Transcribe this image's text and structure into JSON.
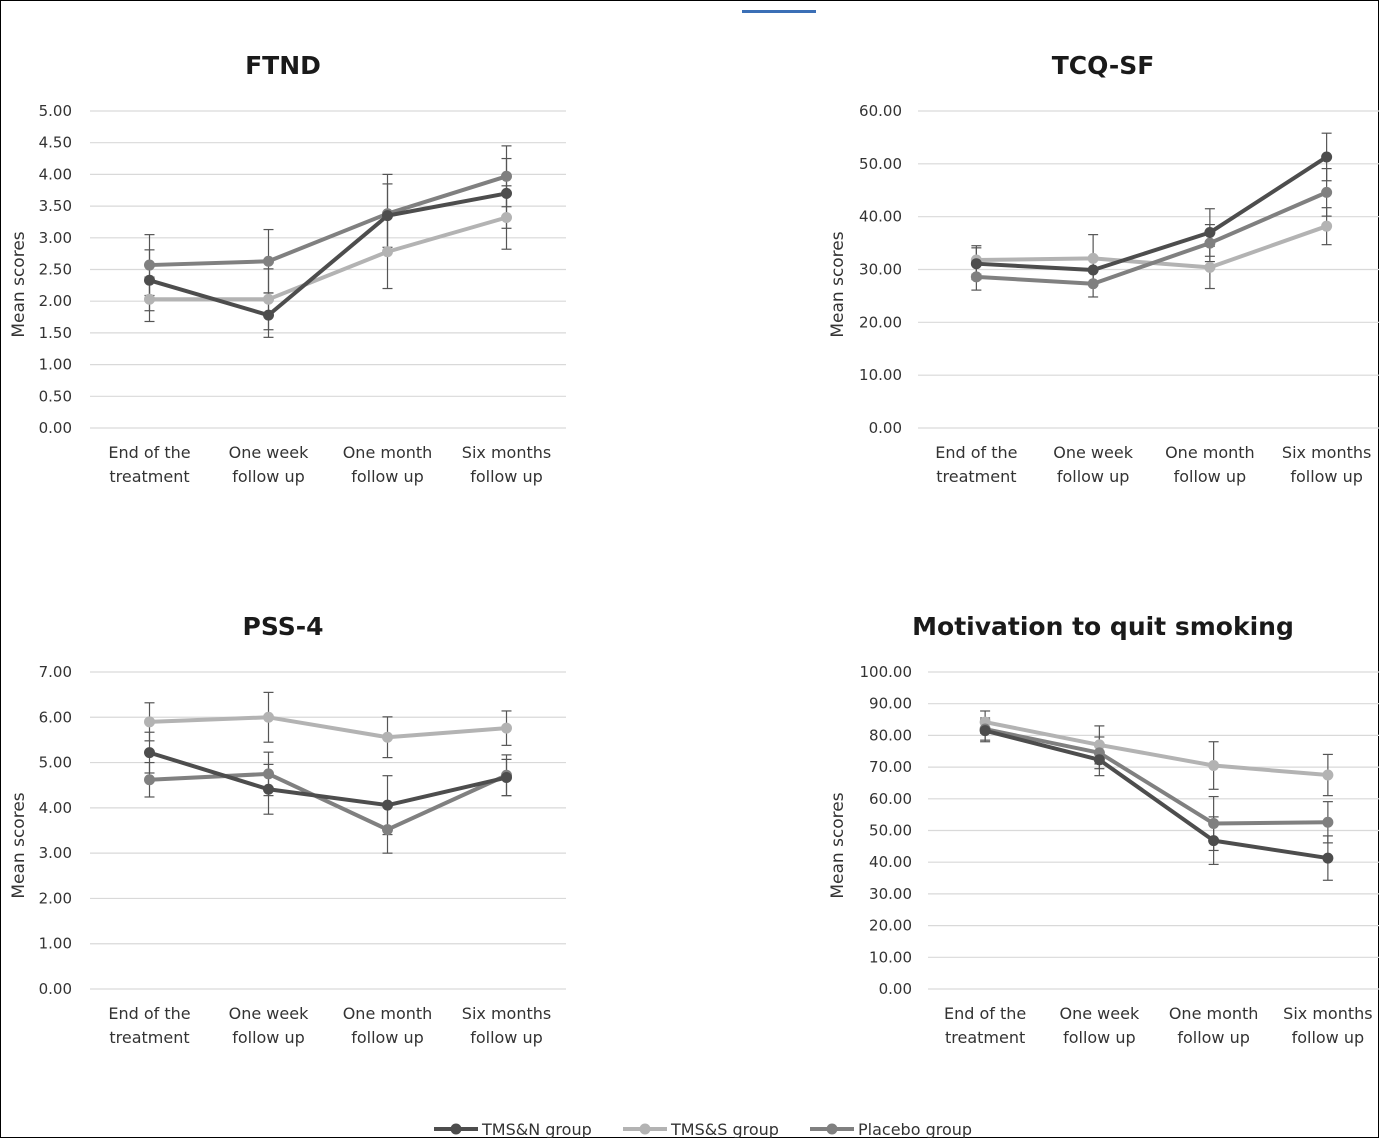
{
  "chart_data": [
    {
      "type": "line",
      "title": "FTND",
      "ylabel": "Mean scores",
      "categories": [
        "End of the treatment",
        "One week follow up",
        "One month follow up",
        "Six months follow up"
      ],
      "category_lines": [
        [
          "End of the",
          "treatment"
        ],
        [
          "One week",
          "follow up"
        ],
        [
          "One month",
          "follow up"
        ],
        [
          "Six months",
          "follow up"
        ]
      ],
      "ylim": [
        0,
        5
      ],
      "yticks": [
        0,
        0.5,
        1,
        1.5,
        2,
        2.5,
        3,
        3.5,
        4,
        4.5,
        5
      ],
      "yticks_labels": [
        "0.00",
        "0.50",
        "1.00",
        "1.50",
        "2.00",
        "2.50",
        "3.00",
        "3.50",
        "4.00",
        "4.50",
        "5.00"
      ],
      "grid": true,
      "series": [
        {
          "name": "TMS&N group",
          "values": [
            2.33,
            1.78,
            3.35,
            3.7
          ],
          "err": [
            0.48,
            0.35,
            0.5,
            0.55
          ]
        },
        {
          "name": "TMS&S group",
          "values": [
            2.03,
            2.03,
            2.78,
            3.32
          ],
          "err": [
            0.35,
            0.48,
            0.58,
            0.5
          ]
        },
        {
          "name": "Placebo group",
          "values": [
            2.57,
            2.63,
            3.38,
            3.97
          ],
          "err": [
            0.48,
            0.5,
            0.62,
            0.48
          ]
        }
      ]
    },
    {
      "type": "line",
      "title": "TCQ-SF",
      "ylabel": "Mean scores",
      "categories": [
        "End of the treatment",
        "One week follow up",
        "One month follow up",
        "Six months follow up"
      ],
      "category_lines": [
        [
          "End of the",
          "treatment"
        ],
        [
          "One week",
          "follow up"
        ],
        [
          "One month",
          "follow up"
        ],
        [
          "Six months",
          "follow up"
        ]
      ],
      "ylim": [
        0,
        60
      ],
      "yticks": [
        0,
        10,
        20,
        30,
        40,
        50,
        60
      ],
      "yticks_labels": [
        "0.00",
        "10.00",
        "20.00",
        "30.00",
        "40.00",
        "50.00",
        "60.00"
      ],
      "grid": true,
      "series": [
        {
          "name": "TMS&N group",
          "values": [
            31.1,
            29.9,
            37.0,
            51.3
          ],
          "err": [
            3.0,
            2.5,
            4.5,
            4.5
          ]
        },
        {
          "name": "TMS&S group",
          "values": [
            31.8,
            32.1,
            30.4,
            38.2
          ],
          "err": [
            2.7,
            4.5,
            4.0,
            3.5
          ]
        },
        {
          "name": "Placebo group",
          "values": [
            28.6,
            27.3,
            35.0,
            44.6
          ],
          "err": [
            2.5,
            2.5,
            3.5,
            4.5
          ]
        }
      ]
    },
    {
      "type": "line",
      "title": "PSS-4",
      "ylabel": "Mean scores",
      "categories": [
        "End of the treatment",
        "One week follow up",
        "One month follow up",
        "Six months follow up"
      ],
      "category_lines": [
        [
          "End of the",
          "treatment"
        ],
        [
          "One week",
          "follow up"
        ],
        [
          "One month",
          "follow up"
        ],
        [
          "Six months",
          "follow up"
        ]
      ],
      "ylim": [
        0,
        7
      ],
      "yticks": [
        0,
        1,
        2,
        3,
        4,
        5,
        6,
        7
      ],
      "yticks_labels": [
        "0.00",
        "1.00",
        "2.00",
        "3.00",
        "4.00",
        "5.00",
        "6.00",
        "7.00"
      ],
      "grid": true,
      "series": [
        {
          "name": "TMS&N group",
          "values": [
            5.22,
            4.41,
            4.06,
            4.67
          ],
          "err": [
            0.45,
            0.55,
            0.65,
            0.4
          ]
        },
        {
          "name": "TMS&S group",
          "values": [
            5.9,
            6.0,
            5.56,
            5.76
          ],
          "err": [
            0.42,
            0.55,
            0.45,
            0.38
          ]
        },
        {
          "name": "Placebo group",
          "values": [
            4.62,
            4.75,
            3.52,
            4.72
          ],
          "err": [
            0.38,
            0.48,
            0.52,
            0.45
          ]
        }
      ]
    },
    {
      "type": "line",
      "title": "Motivation to quit smoking",
      "ylabel": "Mean scores",
      "categories": [
        "End of the treatment",
        "One week follow up",
        "One month follow up",
        "Six months follow up"
      ],
      "category_lines": [
        [
          "End of the",
          "treatment"
        ],
        [
          "One week",
          "follow up"
        ],
        [
          "One month",
          "follow up"
        ],
        [
          "Six months",
          "follow up"
        ]
      ],
      "ylim": [
        0,
        100
      ],
      "yticks": [
        0,
        10,
        20,
        30,
        40,
        50,
        60,
        70,
        80,
        90,
        100
      ],
      "yticks_labels": [
        "0.00",
        "10.00",
        "20.00",
        "30.00",
        "40.00",
        "50.00",
        "60.00",
        "70.00",
        "80.00",
        "90.00",
        "100.00"
      ],
      "grid": true,
      "series": [
        {
          "name": "TMS&N group",
          "values": [
            81.5,
            72.3,
            46.8,
            41.3
          ],
          "err": [
            3.5,
            5.0,
            7.5,
            7.0
          ]
        },
        {
          "name": "TMS&S group",
          "values": [
            84.2,
            77.0,
            70.5,
            67.5
          ],
          "err": [
            3.5,
            6.0,
            7.5,
            6.5
          ]
        },
        {
          "name": "Placebo group",
          "values": [
            82.0,
            74.5,
            52.2,
            52.6
          ],
          "err": [
            3.5,
            5.0,
            8.5,
            6.5
          ]
        }
      ]
    }
  ],
  "legend": {
    "placement": "bottom",
    "items": [
      {
        "label": "TMS&N group",
        "color": "#4d4d4d"
      },
      {
        "label": "TMS&S group",
        "color": "#b3b3b3"
      },
      {
        "label": "Placebo group",
        "color": "#808080"
      }
    ]
  },
  "colors": {
    "TMS&N group": "#4d4d4d",
    "TMS&S group": "#b3b3b3",
    "Placebo group": "#808080",
    "grid": "#d9d9d9",
    "error_bar": "#555555"
  }
}
